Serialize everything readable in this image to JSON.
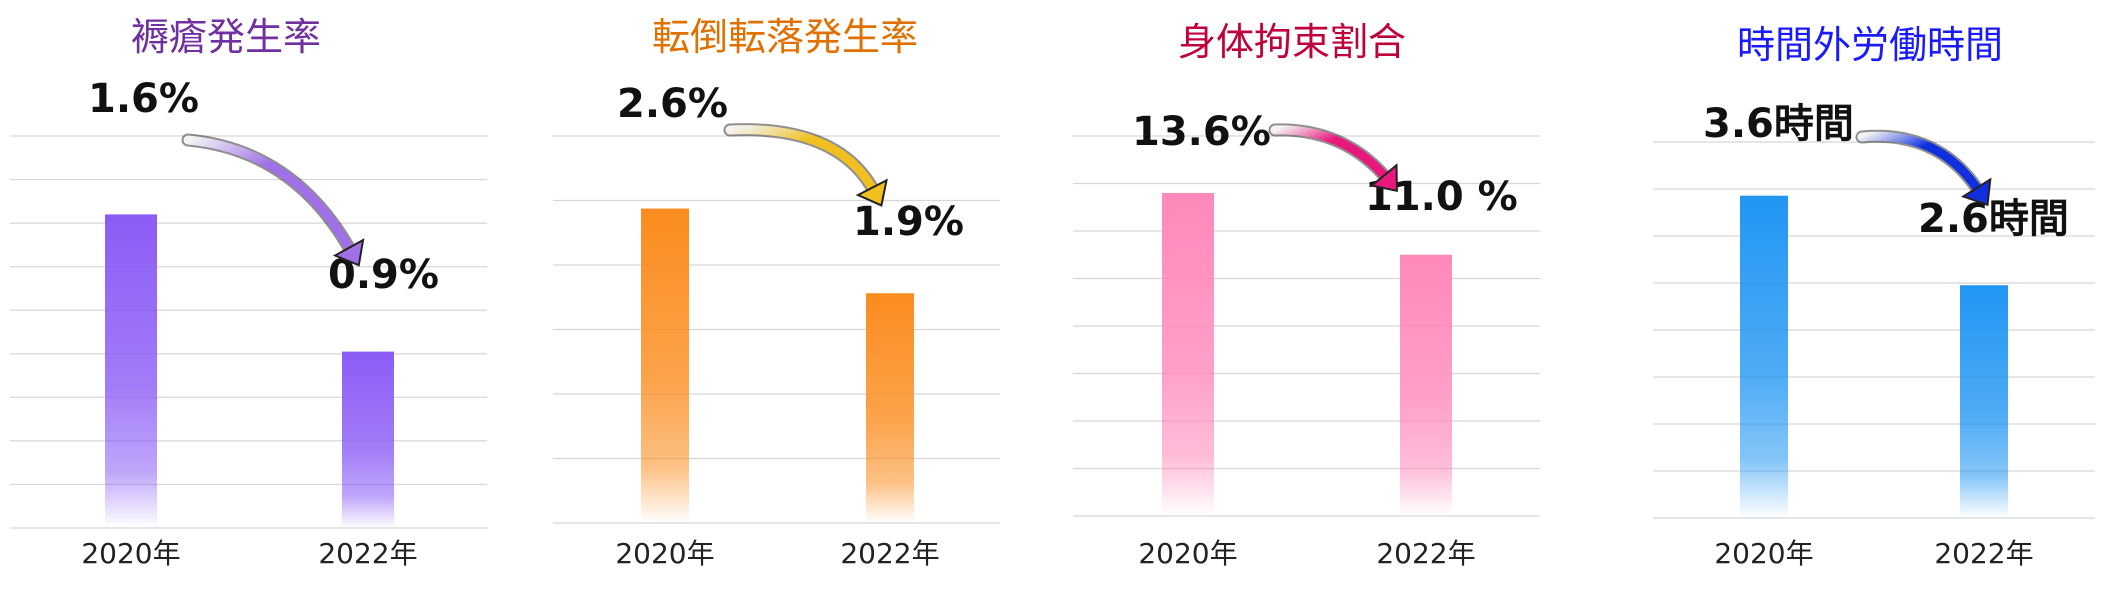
{
  "chart_data": [
    {
      "type": "bar",
      "title": "褥瘡発生率",
      "categories": [
        "2020年",
        "2022年"
      ],
      "values": [
        1.6,
        0.9
      ],
      "value_labels": [
        "1.6%",
        "0.9%"
      ],
      "ylim": [
        0,
        2.0
      ],
      "grid": true,
      "colors": {
        "title": "#7030a0",
        "bar": "#8b5cf6",
        "arrow": "#a070e8"
      }
    },
    {
      "type": "bar",
      "title": "転倒転落発生率",
      "categories": [
        "2020年",
        "2022年"
      ],
      "values": [
        2.6,
        1.9
      ],
      "value_labels": [
        "2.6%",
        "1.9%"
      ],
      "ylim": [
        0,
        3.2
      ],
      "grid": true,
      "colors": {
        "title": "#e07000",
        "bar": "#fb8c1e",
        "arrow": "#f0c020"
      }
    },
    {
      "type": "bar",
      "title": "身体拘束割合",
      "categories": [
        "2020年",
        "2022年"
      ],
      "values": [
        13.6,
        11.0
      ],
      "value_labels": [
        "13.6%",
        "11.0 %"
      ],
      "ylim": [
        0,
        16.0
      ],
      "grid": true,
      "colors": {
        "title": "#c0003c",
        "bar": "#ff88bb",
        "arrow": "#e8187c"
      }
    },
    {
      "type": "bar",
      "title": "時間外労働時間",
      "categories": [
        "2020年",
        "2022年"
      ],
      "values": [
        3.6,
        2.6
      ],
      "value_labels": [
        "3.6時間",
        "2.6時間"
      ],
      "ylim": [
        0,
        4.2
      ],
      "grid": true,
      "colors": {
        "title": "#1a1aff",
        "bar": "#2196f3",
        "arrow": "#1030e0"
      }
    }
  ]
}
